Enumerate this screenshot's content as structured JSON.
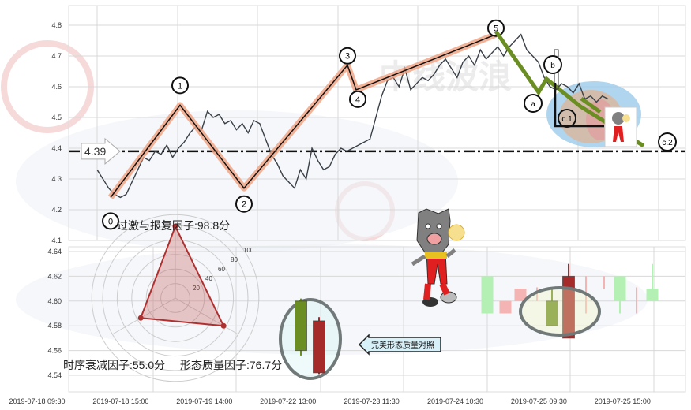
{
  "chart_data": [
    {
      "type": "line",
      "panel": "top",
      "ylim": [
        4.1,
        4.8
      ],
      "yticks": [
        "4.8",
        "4.7",
        "4.6",
        "4.5",
        "4.4",
        "4.3",
        "4.2",
        "4.1"
      ],
      "grid": true,
      "price_series": [
        4.33,
        4.3,
        4.27,
        4.25,
        4.24,
        4.25,
        4.29,
        4.33,
        4.37,
        4.36,
        4.39,
        4.38,
        4.41,
        4.37,
        4.4,
        4.42,
        4.45,
        4.47,
        4.46,
        4.52,
        4.5,
        4.51,
        4.48,
        4.49,
        4.46,
        4.48,
        4.45,
        4.49,
        4.48,
        4.43,
        4.38,
        4.35,
        4.31,
        4.29,
        4.27,
        4.33,
        4.3,
        4.4,
        4.36,
        4.33,
        4.34,
        4.38,
        4.4,
        4.39,
        4.4,
        4.41,
        4.42,
        4.43,
        4.5,
        4.57,
        4.62,
        4.63,
        4.6,
        4.66,
        4.59,
        4.61,
        4.63,
        4.62,
        4.64,
        4.67,
        4.69,
        4.66,
        4.63,
        4.68,
        4.7,
        4.67,
        4.72,
        4.69,
        4.71,
        4.73,
        4.7,
        4.73,
        4.75,
        4.77,
        4.72,
        4.7,
        4.68,
        4.63,
        4.6,
        4.59,
        4.61,
        4.6,
        4.58,
        4.61,
        4.56,
        4.57,
        4.55,
        4.57,
        4.56
      ],
      "wave_points": [
        {
          "label": "0",
          "value": 4.24
        },
        {
          "label": "1",
          "value": 4.54
        },
        {
          "label": "2",
          "value": 4.27
        },
        {
          "label": "3",
          "value": 4.67
        },
        {
          "label": "4",
          "value": 4.59
        },
        {
          "label": "5",
          "value": 4.77
        }
      ],
      "correction_points": [
        {
          "label": "a",
          "value": 4.58
        },
        {
          "label": "b",
          "value": 4.62
        },
        {
          "label": "c.1",
          "value": 4.5
        },
        {
          "label": "c.2",
          "value": 4.39
        }
      ],
      "level_line": {
        "value": 4.39,
        "label": "4.39"
      }
    },
    {
      "type": "candlestick",
      "panel": "bottom",
      "ylim": [
        4.53,
        4.645
      ],
      "yticks": [
        "4.64",
        "4.62",
        "4.60",
        "4.58",
        "4.56",
        "4.54"
      ],
      "xticks": [
        "2019-07-18 09:30",
        "2019-07-18 15:00",
        "2019-07-19 14:00",
        "2019-07-22 13:00",
        "2019-07-23 11:30",
        "2019-07-24 10:30",
        "2019-07-25 09:30",
        "2019-07-25 15:00"
      ],
      "reference_candles": [
        {
          "open": 4.56,
          "close": 4.6,
          "high": 4.602,
          "low": 4.556,
          "color": "#6b8e23"
        },
        {
          "open": 4.584,
          "close": 4.542,
          "high": 4.587,
          "low": 4.541,
          "color": "#a52a2a"
        }
      ],
      "candles": [
        {
          "open": 4.59,
          "close": 4.62,
          "high": 4.62,
          "low": 4.59,
          "color": "#b4f0b4"
        },
        {
          "open": 4.6,
          "close": 4.59,
          "high": 4.6,
          "low": 4.59,
          "color": "#f4b4b4"
        },
        {
          "open": 4.61,
          "close": 4.6,
          "high": 4.61,
          "low": 4.6,
          "color": "#f4b4b4"
        },
        {
          "open": 4.611,
          "close": 4.6,
          "high": 4.611,
          "low": 4.6,
          "color": "#f4b4b4"
        },
        {
          "open": 4.58,
          "close": 4.6,
          "high": 4.611,
          "low": 4.58,
          "color": "#6b8e23"
        },
        {
          "open": 4.62,
          "close": 4.57,
          "high": 4.63,
          "low": 4.57,
          "color": "#a52a2a"
        },
        {
          "open": 4.62,
          "close": 4.619,
          "high": 4.62,
          "low": 4.59,
          "color": "#f4b4b4"
        },
        {
          "open": 4.62,
          "close": 4.619,
          "high": 4.62,
          "low": 4.61,
          "color": "#f4b4b4"
        },
        {
          "open": 4.6,
          "close": 4.62,
          "high": 4.62,
          "low": 4.59,
          "color": "#b4f0b4"
        },
        {
          "open": 4.611,
          "close": 4.61,
          "high": 4.611,
          "low": 4.59,
          "color": "#f4b4b4"
        },
        {
          "open": 4.6,
          "close": 4.61,
          "high": 4.63,
          "low": 4.6,
          "color": "#b4f0b4"
        }
      ]
    },
    {
      "type": "radar",
      "rings": [
        "20",
        "40",
        "60",
        "80",
        "100"
      ],
      "factors": [
        {
          "label": "过激与报复因子:98.8分",
          "value": 98.8
        },
        {
          "label": "形态质量因子:76.7分",
          "value": 76.7
        },
        {
          "label": "时序衰减因子:55.0分",
          "value": 55.0
        }
      ]
    }
  ],
  "callout": {
    "label": "完美形态质量对照"
  },
  "colors": {
    "impulse": "#f0a080",
    "correction": "#6b8e23",
    "radar": "#b03030",
    "ellipse_blue": "#9ccbea",
    "ellipse_tan": "#d8b8a0"
  },
  "watermark": {
    "text": "中线波浪"
  }
}
